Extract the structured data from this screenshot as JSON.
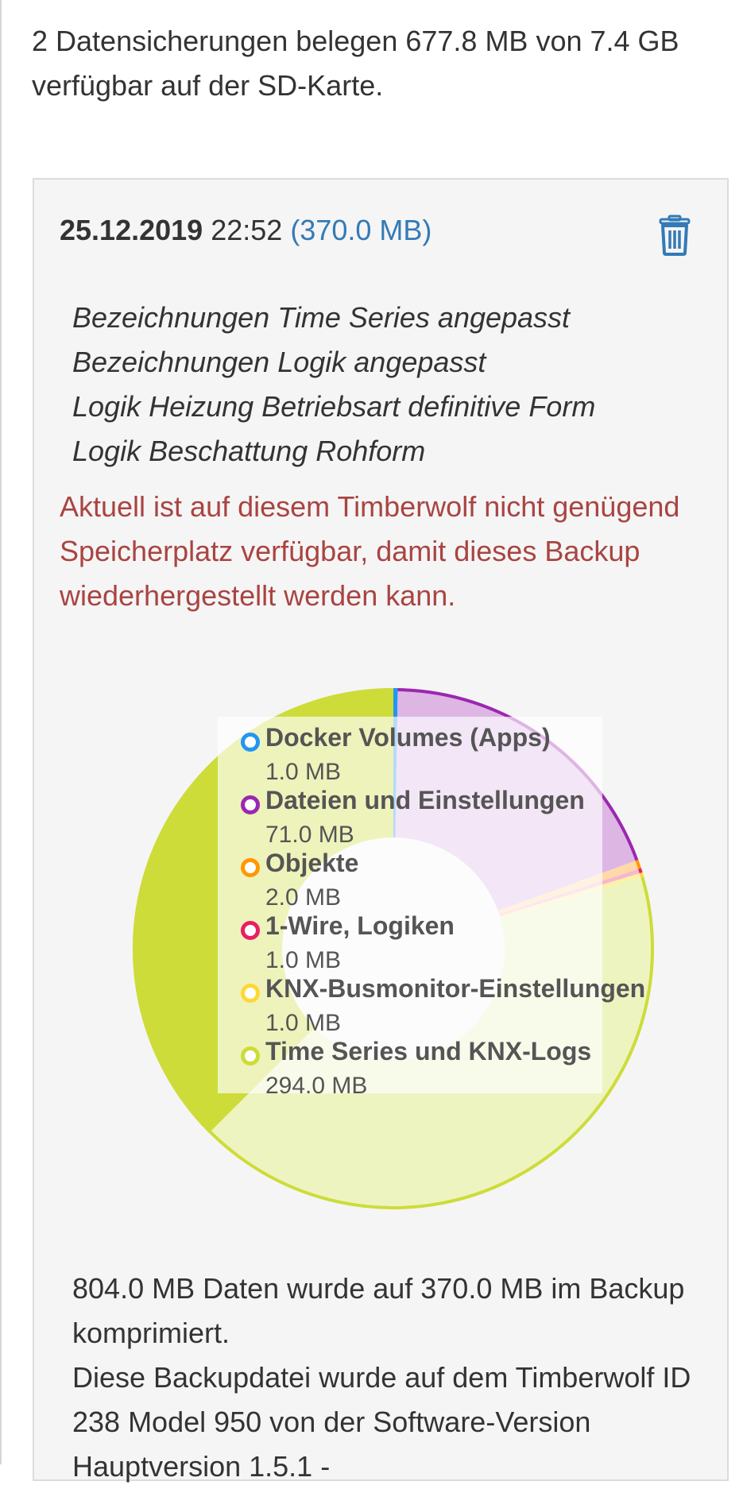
{
  "summary": "2 Datensicherungen belegen 677.8 MB von 7.4 GB verfügbar auf der SD-Karte.",
  "backup": {
    "date": "25.12.2019",
    "time": "22:52",
    "size": "(370.0 MB)",
    "notes": [
      "Bezeichnungen Time Series angepasst",
      "Bezeichnungen Logik angepasst",
      "Logik Heizung Betriebsart definitive Form",
      "Logik Beschattung Rohform"
    ],
    "warning": "Aktuell ist auf diesem Timberwolf nicht genügend Speicherplatz verfügbar, damit dieses Backup wiederhergestellt werden kann.",
    "footer": [
      "804.0 MB Daten wurde auf 370.0 MB im Backup komprimiert.",
      "Diese Backupdatei wurde auf dem Timberwolf ID 238 Model 950 von der Software-Version Hauptversion 1.5.1 -"
    ]
  },
  "icons": {
    "delete": "trash-icon"
  },
  "colors": {
    "accent": "#337ab7",
    "warning": "#a94442"
  },
  "chart_data": {
    "type": "pie",
    "variant": "donut",
    "unit": "MB",
    "series": [
      {
        "name": "Docker Volumes (Apps)",
        "value": 1.0,
        "label": "1.0 MB",
        "color": "#2196f3",
        "fill": "#2196f3"
      },
      {
        "name": "Dateien und Einstellungen",
        "value": 71.0,
        "label": "71.0 MB",
        "color": "#9c27b0",
        "fill": "#ddb6e4"
      },
      {
        "name": "Objekte",
        "value": 2.0,
        "label": "2.0 MB",
        "color": "#ff9800",
        "fill": "#ffd9a8"
      },
      {
        "name": "1-Wire, Logiken",
        "value": 1.0,
        "label": "1.0 MB",
        "color": "#e91e63",
        "fill": "#f6b8cc"
      },
      {
        "name": "KNX-Busmonitor-Einstellungen",
        "value": 1.0,
        "label": "1.0 MB",
        "color": "#fdd835",
        "fill": "#fdf1a8"
      },
      {
        "name": "Time Series und KNX-Logs",
        "value": 294.0,
        "label": "294.0 MB",
        "color": "#cddc39",
        "fill": "#eef4c0"
      }
    ],
    "legend_position": "overlay-center"
  }
}
